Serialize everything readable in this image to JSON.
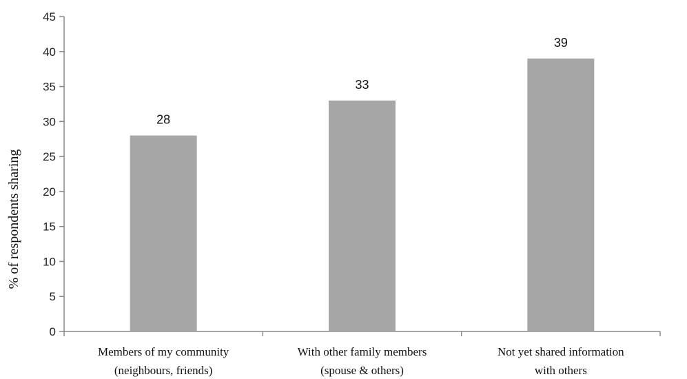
{
  "chart_data": {
    "type": "bar",
    "title": "",
    "xlabel": "",
    "ylabel": "% of respondents sharing",
    "ylim": [
      0,
      45
    ],
    "yticks": [
      0,
      5,
      10,
      15,
      20,
      25,
      30,
      35,
      40,
      45
    ],
    "grid": false,
    "legend": "none",
    "categories": [
      [
        "Members of my community",
        "(neighbours, friends)"
      ],
      [
        "With other family members",
        "(spouse & others)"
      ],
      [
        "Not yet shared information",
        "with others"
      ]
    ],
    "values": [
      28,
      33,
      39
    ],
    "data_labels": [
      "28",
      "33",
      "39"
    ],
    "colors": {
      "bar": "#a6a6a6",
      "axis": "#888888",
      "text": "#111111"
    }
  }
}
